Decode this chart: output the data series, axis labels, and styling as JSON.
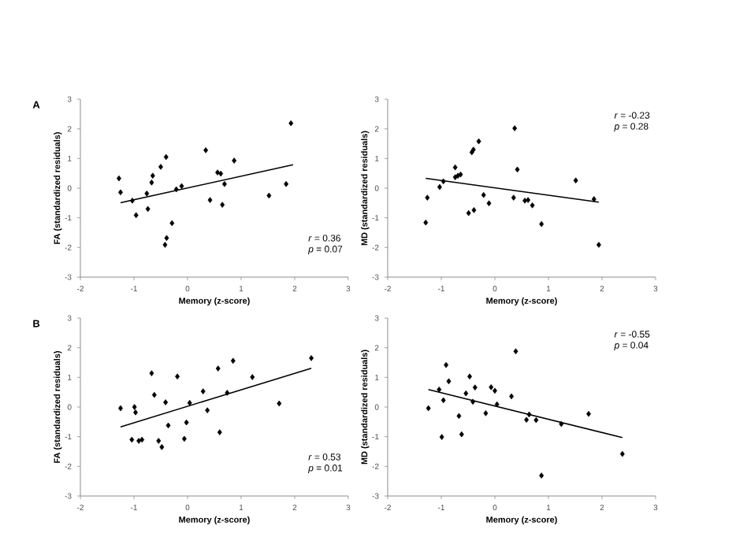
{
  "chart_data": [
    {
      "type": "scatter",
      "xlabel": "Memory (z-score)",
      "ylabel": "FA (standardized residuals)",
      "annotations": [
        "A",
        "*r* = 0.36",
        "*p* = 0.07"
      ],
      "xlim": [
        -2,
        3
      ],
      "ylim": [
        -3,
        3
      ],
      "xticks": [
        -2,
        -1,
        0,
        1,
        2,
        3
      ],
      "yticks": [
        -3,
        -2,
        -1,
        0,
        1,
        2,
        3
      ],
      "series": [
        {
          "color": "#000000",
          "marker": "diamond",
          "x": [
            -1.28,
            -1.25,
            -1.03,
            -0.96,
            -0.76,
            -0.74,
            -0.67,
            -0.65,
            -0.5,
            -0.4,
            -0.39,
            -0.42,
            -0.29,
            -0.21,
            -0.11,
            0.34,
            0.42,
            0.56,
            0.62,
            0.69,
            0.65,
            0.87,
            1.52,
            1.84,
            1.93
          ],
          "values": [
            0.33,
            -0.14,
            -0.42,
            -0.91,
            -0.18,
            -0.7,
            0.19,
            0.42,
            0.72,
            1.05,
            -1.68,
            -1.91,
            -1.18,
            -0.04,
            0.07,
            1.28,
            -0.4,
            0.53,
            0.49,
            0.14,
            -0.56,
            0.93,
            -0.25,
            0.14,
            2.19
          ]
        },
        {
          "type": "line",
          "color": "#000000",
          "marker": "none",
          "x": [
            -1.25,
            1.97
          ],
          "values": [
            -0.49,
            0.79
          ]
        }
      ]
    },
    {
      "type": "scatter",
      "xlabel": "Memory (z-score)",
      "ylabel": "MD (standardized residuals)",
      "annotations": [
        "*r* = -0.23",
        "*p* = 0.28"
      ],
      "xlim": [
        -2,
        3
      ],
      "ylim": [
        -3,
        3
      ],
      "xticks": [
        -2,
        -1,
        0,
        1,
        2,
        3
      ],
      "yticks": [
        -3,
        -2,
        -1,
        0,
        1,
        2,
        3
      ],
      "series": [
        {
          "color": "#000000",
          "marker": "diamond",
          "x": [
            -1.29,
            -1.26,
            -1.03,
            -0.96,
            -0.74,
            -0.74,
            -0.69,
            -0.64,
            -0.49,
            -0.43,
            -0.4,
            -0.39,
            -0.3,
            -0.21,
            -0.11,
            0.35,
            0.42,
            0.56,
            0.62,
            0.37,
            0.7,
            0.87,
            1.51,
            1.85,
            1.94
          ],
          "values": [
            -1.16,
            -0.32,
            0.04,
            0.23,
            0.7,
            0.37,
            0.42,
            0.46,
            -0.84,
            1.21,
            1.3,
            -0.74,
            1.58,
            -0.23,
            -0.51,
            -0.32,
            0.63,
            -0.42,
            -0.4,
            2.02,
            -0.58,
            -1.21,
            0.26,
            -0.37,
            -1.91
          ]
        },
        {
          "type": "line",
          "color": "#000000",
          "marker": "none",
          "x": [
            -1.29,
            1.94
          ],
          "values": [
            0.33,
            -0.47
          ]
        }
      ]
    },
    {
      "type": "scatter",
      "xlabel": "Memory (z-score)",
      "ylabel": "FA (standardized residuals)",
      "annotations": [
        "B",
        "*r* = 0.53",
        "*p* = 0.01"
      ],
      "xlim": [
        -2,
        3
      ],
      "ylim": [
        -3,
        3
      ],
      "xticks": [
        -2,
        -1,
        0,
        1,
        2,
        3
      ],
      "yticks": [
        -3,
        -2,
        -1,
        0,
        1,
        2,
        3
      ],
      "series": [
        {
          "color": "#000000",
          "marker": "diamond",
          "x": [
            -1.25,
            -0.99,
            -0.97,
            -1.04,
            -0.91,
            -0.85,
            -0.67,
            -0.62,
            -0.54,
            -0.48,
            -0.41,
            -0.36,
            -0.19,
            -0.06,
            -0.02,
            0.04,
            0.29,
            0.37,
            0.6,
            0.57,
            0.74,
            0.85,
            1.21,
            1.71,
            2.31
          ],
          "values": [
            -0.04,
            0.0,
            -0.18,
            -1.1,
            -1.14,
            -1.1,
            1.14,
            0.41,
            -1.14,
            -1.35,
            0.16,
            -0.62,
            1.03,
            -1.07,
            -0.52,
            0.14,
            0.53,
            -0.11,
            -0.85,
            1.3,
            0.48,
            1.56,
            1.01,
            0.12,
            1.65
          ]
        },
        {
          "type": "line",
          "color": "#000000",
          "marker": "none",
          "x": [
            -1.25,
            2.31
          ],
          "values": [
            -0.67,
            1.31
          ]
        }
      ]
    },
    {
      "type": "scatter",
      "xlabel": "Memory (z-score)",
      "ylabel": "MD (standardized residuals)",
      "annotations": [
        "*r* = -0.55",
        "*p* = 0.04"
      ],
      "xlim": [
        -2,
        3
      ],
      "ylim": [
        -3,
        3
      ],
      "xticks": [
        -2,
        -1,
        0,
        1,
        2,
        3
      ],
      "yticks": [
        -3,
        -2,
        -1,
        0,
        1,
        2,
        3
      ],
      "series": [
        {
          "color": "#000000",
          "marker": "diamond",
          "x": [
            -1.24,
            -1.04,
            -0.99,
            -0.96,
            -0.91,
            -0.86,
            -0.67,
            -0.62,
            -0.54,
            -0.47,
            -0.41,
            -0.37,
            -0.17,
            -0.07,
            0.0,
            0.04,
            0.31,
            0.39,
            0.59,
            0.64,
            0.77,
            0.87,
            1.24,
            1.75,
            2.38
          ],
          "values": [
            -0.04,
            0.59,
            -1.01,
            0.23,
            1.42,
            0.87,
            -0.3,
            -0.92,
            0.46,
            1.03,
            0.18,
            0.66,
            -0.21,
            0.67,
            0.55,
            0.09,
            0.36,
            1.88,
            -0.43,
            -0.25,
            -0.44,
            -2.31,
            -0.57,
            -0.23,
            -1.58
          ]
        },
        {
          "type": "line",
          "color": "#000000",
          "marker": "none",
          "x": [
            -1.24,
            2.38
          ],
          "values": [
            0.59,
            -1.03
          ]
        }
      ]
    }
  ]
}
